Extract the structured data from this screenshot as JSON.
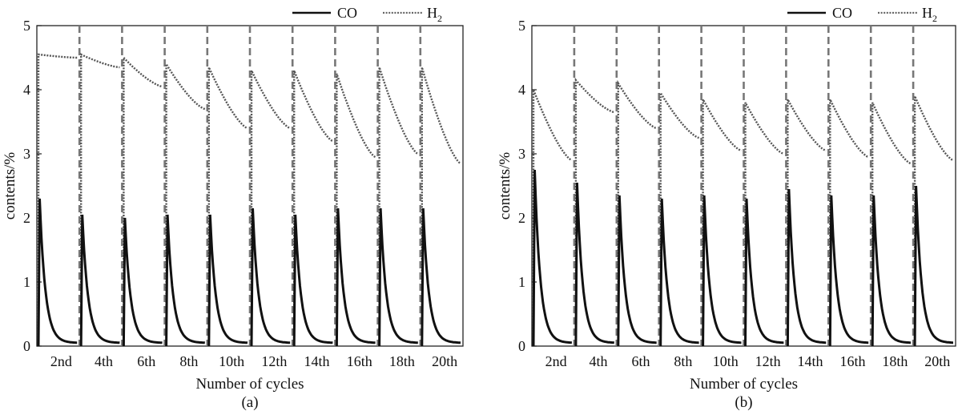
{
  "chart_data": [
    {
      "type": "line",
      "panel_label": "(a)",
      "xlabel": "Number of cycles",
      "ylabel": "contents/%",
      "ylim": [
        0,
        5
      ],
      "yticks": [
        "0",
        "1",
        "2",
        "3",
        "4",
        "5"
      ],
      "cycle_labels": [
        "2nd",
        "4th",
        "6th",
        "8th",
        "10th",
        "12th",
        "14th",
        "16th",
        "18th",
        "20th"
      ],
      "legend": [
        {
          "name": "CO",
          "style": "solid"
        },
        {
          "name": "H",
          "sub": "2",
          "style": "dotted"
        }
      ],
      "cycles": 10,
      "series": [
        {
          "name": "CO",
          "peaks": [
            2.3,
            2.05,
            2.0,
            2.05,
            2.05,
            2.15,
            2.05,
            2.15,
            2.15,
            2.15
          ],
          "tail": 0.05
        },
        {
          "name": "H2",
          "starts": [
            4.55,
            4.55,
            4.5,
            4.4,
            4.35,
            4.3,
            4.3,
            4.25,
            4.35,
            4.35
          ],
          "ends": [
            4.5,
            4.35,
            4.05,
            3.7,
            3.4,
            3.4,
            3.2,
            2.95,
            3.0,
            2.85
          ]
        }
      ]
    },
    {
      "type": "line",
      "panel_label": "(b)",
      "xlabel": "Number of cycles",
      "ylabel": "contents/%",
      "ylim": [
        0,
        5
      ],
      "yticks": [
        "0",
        "1",
        "2",
        "3",
        "4",
        "5"
      ],
      "cycle_labels": [
        "2nd",
        "4th",
        "6th",
        "8th",
        "10th",
        "12th",
        "14th",
        "16th",
        "18th",
        "20th"
      ],
      "legend": [
        {
          "name": "CO",
          "style": "solid"
        },
        {
          "name": "H",
          "sub": "2",
          "style": "dotted"
        }
      ],
      "cycles": 10,
      "series": [
        {
          "name": "CO",
          "peaks": [
            2.75,
            2.55,
            2.35,
            2.3,
            2.35,
            2.3,
            2.45,
            2.35,
            2.35,
            2.5
          ],
          "tail": 0.05
        },
        {
          "name": "H2",
          "starts": [
            4.0,
            4.15,
            4.1,
            3.95,
            3.85,
            3.8,
            3.85,
            3.85,
            3.8,
            3.9
          ],
          "ends": [
            2.9,
            3.65,
            3.4,
            3.25,
            3.05,
            3.0,
            3.05,
            2.95,
            2.85,
            2.9
          ]
        }
      ]
    }
  ]
}
